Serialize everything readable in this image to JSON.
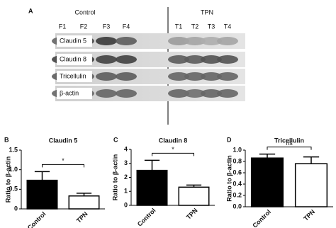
{
  "blot": {
    "panel": "A",
    "groups": [
      "Control",
      "TPN"
    ],
    "lanes": [
      "F1",
      "F2",
      "F3",
      "F4",
      "T1",
      "T2",
      "T3",
      "T4"
    ],
    "rows": [
      "Claudin 5",
      "Claudin 8",
      "Tricellulin",
      "β-actin"
    ]
  },
  "chart_data": [
    {
      "type": "bar",
      "panel": "B",
      "title": "Claudin 5",
      "ylabel": "Ratio to β-actin",
      "categories": [
        "Control",
        "TPN"
      ],
      "values": [
        0.73,
        0.33
      ],
      "errors": [
        0.22,
        0.07
      ],
      "colors": [
        "#000000",
        "#ffffff"
      ],
      "ylim": [
        0,
        1.5
      ],
      "yticks": [
        0,
        0.5,
        {
          "value": 1,
          "label": "1.0"
        },
        1.5
      ],
      "annotation": "*"
    },
    {
      "type": "bar",
      "panel": "C",
      "title": "Claudin 8",
      "ylabel": "Ratio to β-actin",
      "categories": [
        "Control",
        "TPN"
      ],
      "values": [
        2.5,
        1.3
      ],
      "errors": [
        0.72,
        0.15
      ],
      "colors": [
        "#000000",
        "#ffffff"
      ],
      "ylim": [
        0,
        4
      ],
      "yticks": [
        0,
        1,
        2,
        3,
        4
      ],
      "annotation": "*"
    },
    {
      "type": "bar",
      "panel": "D",
      "title": "Tricellulin",
      "ylabel": "Ratio to β-actin",
      "categories": [
        "Control",
        "TPN"
      ],
      "values": [
        0.86,
        0.76
      ],
      "errors": [
        0.07,
        0.12
      ],
      "colors": [
        "#000000",
        "#ffffff"
      ],
      "ylim": [
        0,
        1
      ],
      "yticks": [
        {
          "value": 0,
          "label": "0.0"
        },
        0.2,
        0.4,
        0.6,
        0.8,
        {
          "value": 1,
          "label": "1.0"
        }
      ],
      "annotation": "ns"
    }
  ]
}
